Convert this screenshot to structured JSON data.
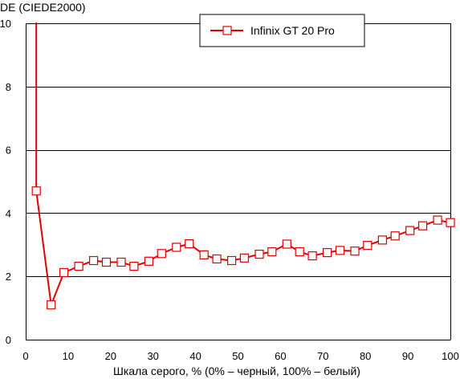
{
  "chart_data": {
    "type": "line",
    "ylabel": "DE (CIEDE2000)",
    "xlabel": "Шкала серого, % (0% – черный, 100% – белый)",
    "xlim": [
      0,
      100
    ],
    "ylim": [
      0,
      10
    ],
    "x_ticks": [
      "0",
      "10",
      "20",
      "30",
      "40",
      "50",
      "60",
      "70",
      "80",
      "90",
      "100"
    ],
    "y_ticks": [
      "0",
      "2",
      "4",
      "6",
      "8",
      "10"
    ],
    "grid": "horizontal",
    "legend_position": "top-right",
    "colors": {
      "series": "#e00000",
      "marker_fill": "#ffffff",
      "grid": "#000000"
    },
    "series": [
      {
        "name": "Infinix GT 20 Pro",
        "lead_in": {
          "x": [
            1.8,
            2.5
          ],
          "y": [
            10.6,
            10
          ]
        },
        "x": [
          2.5,
          6.0,
          9.0,
          12.5,
          16.0,
          19.0,
          22.5,
          25.5,
          29.0,
          32.0,
          35.5,
          38.5,
          42.0,
          45.0,
          48.5,
          51.5,
          55.0,
          58.0,
          61.5,
          64.5,
          67.5,
          71.0,
          74.0,
          77.5,
          80.5,
          84.0,
          87.0,
          90.5,
          93.5,
          97.0,
          100.0
        ],
        "y": [
          4.7,
          1.1,
          2.12,
          2.32,
          2.5,
          2.45,
          2.45,
          2.32,
          2.48,
          2.72,
          2.92,
          3.03,
          2.68,
          2.55,
          2.5,
          2.58,
          2.7,
          2.78,
          3.02,
          2.78,
          2.65,
          2.75,
          2.82,
          2.8,
          2.98,
          3.15,
          3.28,
          3.45,
          3.6,
          3.78,
          3.7
        ]
      }
    ]
  }
}
